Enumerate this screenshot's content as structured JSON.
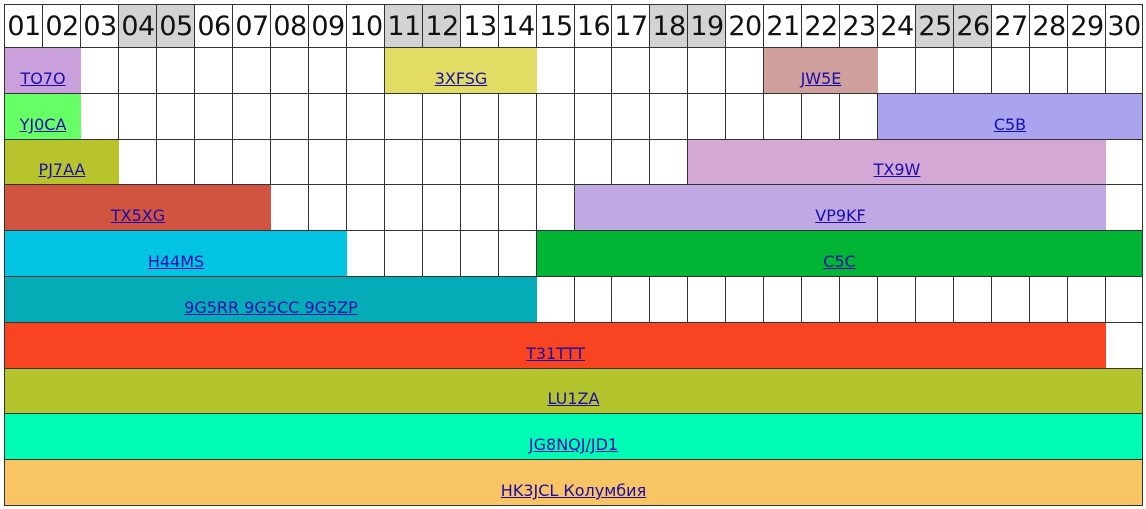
{
  "calendar": {
    "days": [
      "01",
      "02",
      "03",
      "04",
      "05",
      "06",
      "07",
      "08",
      "09",
      "10",
      "11",
      "12",
      "13",
      "14",
      "15",
      "16",
      "17",
      "18",
      "19",
      "20",
      "21",
      "22",
      "23",
      "24",
      "25",
      "26",
      "27",
      "28",
      "29",
      "30"
    ],
    "weekend_days": [
      "04",
      "05",
      "11",
      "12",
      "18",
      "19",
      "25",
      "26"
    ],
    "rows": [
      {
        "events": [
          {
            "label": "TO7O",
            "start": 1,
            "end": 2,
            "color": "#c9a0dc"
          },
          {
            "label": "3XFSG",
            "start": 11,
            "end": 14,
            "color": "#e0dc64"
          },
          {
            "label": "JW5E",
            "start": 21,
            "end": 23,
            "color": "#d0a09c"
          }
        ]
      },
      {
        "events": [
          {
            "label": "YJ0CA",
            "start": 1,
            "end": 2,
            "color": "#66ff66"
          },
          {
            "label": "C5B",
            "start": 24,
            "end": 30,
            "color": "#aaa4ee"
          }
        ]
      },
      {
        "events": [
          {
            "label": "PJ7AA",
            "start": 1,
            "end": 3,
            "color": "#b8c42c"
          },
          {
            "label": "TX9W",
            "start": 19,
            "end": 29,
            "color": "#d4a8d4"
          }
        ]
      },
      {
        "events": [
          {
            "label": "TX5XG",
            "start": 1,
            "end": 7,
            "color": "#d05440"
          },
          {
            "label": "VP9KF",
            "start": 16,
            "end": 29,
            "color": "#c0a8e4"
          }
        ]
      },
      {
        "events": [
          {
            "label": "H44MS",
            "start": 1,
            "end": 9,
            "color": "#04c4e4"
          },
          {
            "label": "C5C",
            "start": 15,
            "end": 30,
            "color": "#00b434"
          }
        ]
      },
      {
        "events": [
          {
            "label": "9G5RR 9G5CC 9G5ZP",
            "start": 1,
            "end": 14,
            "color": "#04acb8"
          }
        ]
      },
      {
        "events": [
          {
            "label": "T31TTT",
            "start": 1,
            "end": 29,
            "color": "#f84420"
          }
        ]
      },
      {
        "events": [
          {
            "label": "LU1ZA",
            "start": 1,
            "end": 30,
            "color": "#b4c42c"
          }
        ]
      },
      {
        "events": [
          {
            "label": "JG8NQJ/JD1",
            "start": 1,
            "end": 30,
            "color": "#00fcb4"
          }
        ]
      },
      {
        "events": [
          {
            "label": "HK3JCL Колумбия",
            "start": 1,
            "end": 30,
            "color": "#f8c464"
          }
        ]
      }
    ]
  }
}
